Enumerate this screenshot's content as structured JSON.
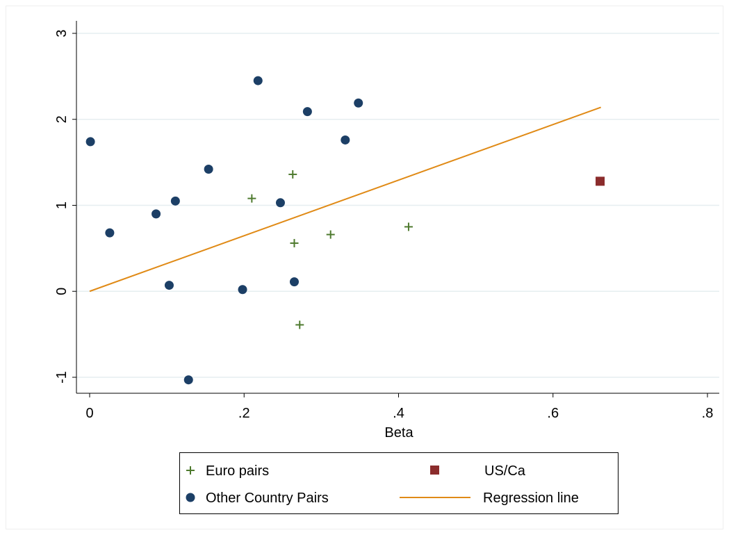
{
  "chart_data": {
    "type": "scatter",
    "title": "",
    "xlabel": "Beta",
    "ylabel": "",
    "xlim": [
      0,
      0.8
    ],
    "ylim": [
      -1,
      3
    ],
    "x_ticks": [
      0,
      0.2,
      0.4,
      0.6,
      0.8
    ],
    "x_tick_labels": [
      "0",
      ".2",
      ".4",
      ".6",
      ".8"
    ],
    "y_ticks": [
      -1,
      0,
      1,
      2,
      3
    ],
    "y_tick_labels": [
      "-1",
      "0",
      "1",
      "2",
      "3"
    ],
    "grid": "horizontal",
    "legend_position": "bottom",
    "series": [
      {
        "name": "Euro pairs",
        "marker": "plus",
        "color": "#4e7a2e",
        "points": [
          [
            0.21,
            1.08
          ],
          [
            0.263,
            1.36
          ],
          [
            0.265,
            0.56
          ],
          [
            0.272,
            -0.39
          ],
          [
            0.312,
            0.66
          ],
          [
            0.413,
            0.75
          ]
        ]
      },
      {
        "name": "Other Country Pairs",
        "marker": "circle",
        "color": "#1c3f66",
        "points": [
          [
            0.001,
            1.74
          ],
          [
            0.026,
            0.68
          ],
          [
            0.086,
            0.9
          ],
          [
            0.103,
            0.07
          ],
          [
            0.111,
            1.05
          ],
          [
            0.128,
            -1.03
          ],
          [
            0.154,
            1.42
          ],
          [
            0.198,
            0.02
          ],
          [
            0.218,
            2.45
          ],
          [
            0.247,
            1.03
          ],
          [
            0.265,
            0.11
          ],
          [
            0.282,
            2.09
          ],
          [
            0.331,
            1.76
          ],
          [
            0.348,
            2.19
          ]
        ]
      },
      {
        "name": "US/Ca",
        "marker": "square",
        "color": "#8b2c2c",
        "points": [
          [
            0.661,
            1.28
          ]
        ]
      },
      {
        "name": "Regression line",
        "marker": "line",
        "color": "#e08a16",
        "points": [
          [
            0,
            0
          ],
          [
            0.662,
            2.14
          ]
        ]
      }
    ]
  }
}
